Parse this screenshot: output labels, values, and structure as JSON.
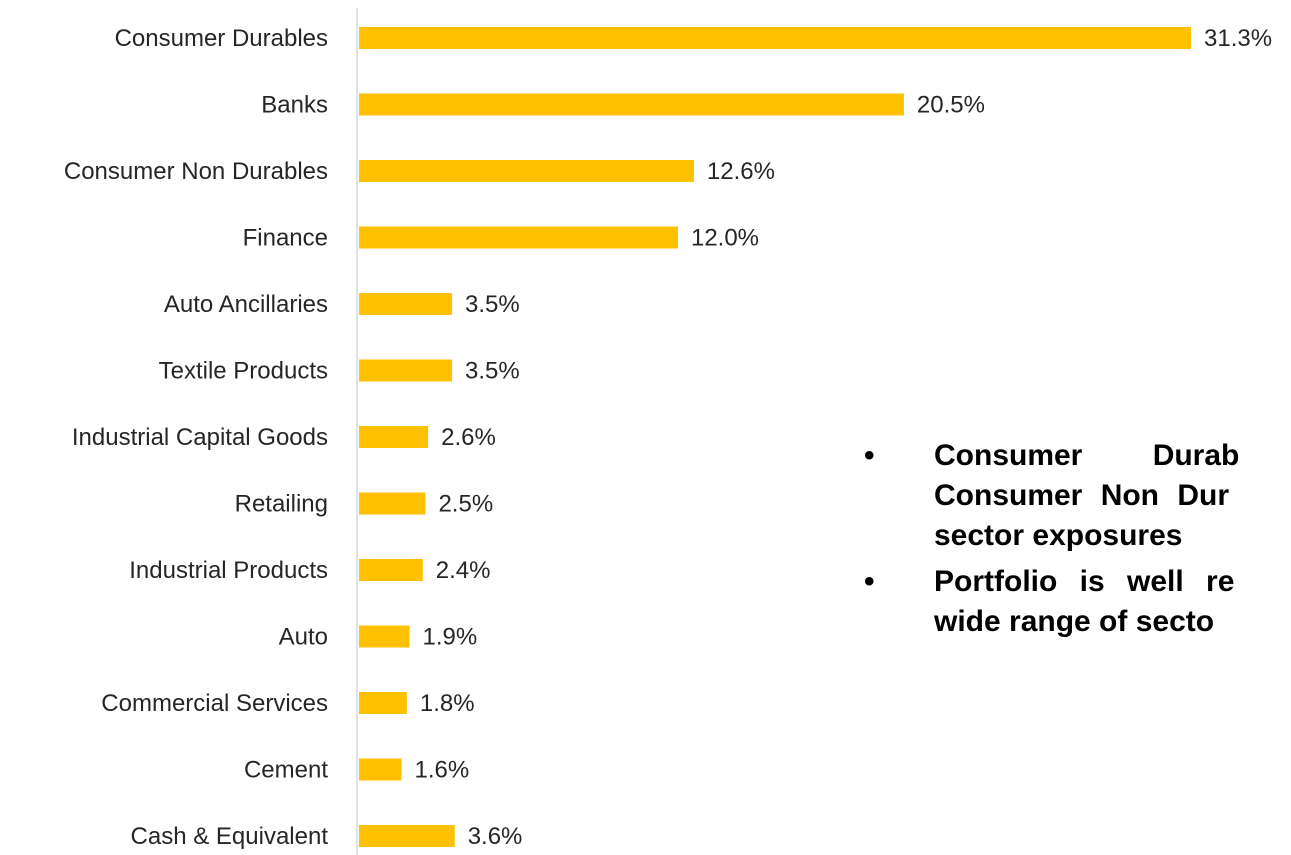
{
  "chart_data": {
    "type": "bar",
    "orientation": "horizontal",
    "categories": [
      "Consumer Durables",
      "Banks",
      "Consumer Non Durables",
      "Finance",
      "Auto Ancillaries",
      "Textile Products",
      "Industrial Capital Goods",
      "Retailing",
      "Industrial Products",
      "Auto",
      "Commercial Services",
      "Cement",
      "Cash & Equivalent"
    ],
    "values": [
      31.3,
      20.5,
      12.6,
      12.0,
      3.5,
      3.5,
      2.6,
      2.5,
      2.4,
      1.9,
      1.8,
      1.6,
      3.6
    ],
    "value_labels": [
      "31.3%",
      "20.5%",
      "12.6%",
      "12.0%",
      "3.5%",
      "3.5%",
      "2.6%",
      "2.5%",
      "2.4%",
      "1.9%",
      "1.8%",
      "1.6%",
      "3.6%"
    ],
    "bar_color": "#FFC000",
    "axis_color": "#D9D9D9",
    "xlim": [
      0,
      31.3
    ],
    "grid": false,
    "legend": "none"
  },
  "notes": [
    {
      "bullet": "•",
      "lines": [
        "Consumer Durab",
        "Consumer Non Dur",
        "sector exposures"
      ]
    },
    {
      "bullet": "•",
      "lines": [
        "Portfolio is well re",
        "wide range of secto"
      ]
    }
  ]
}
